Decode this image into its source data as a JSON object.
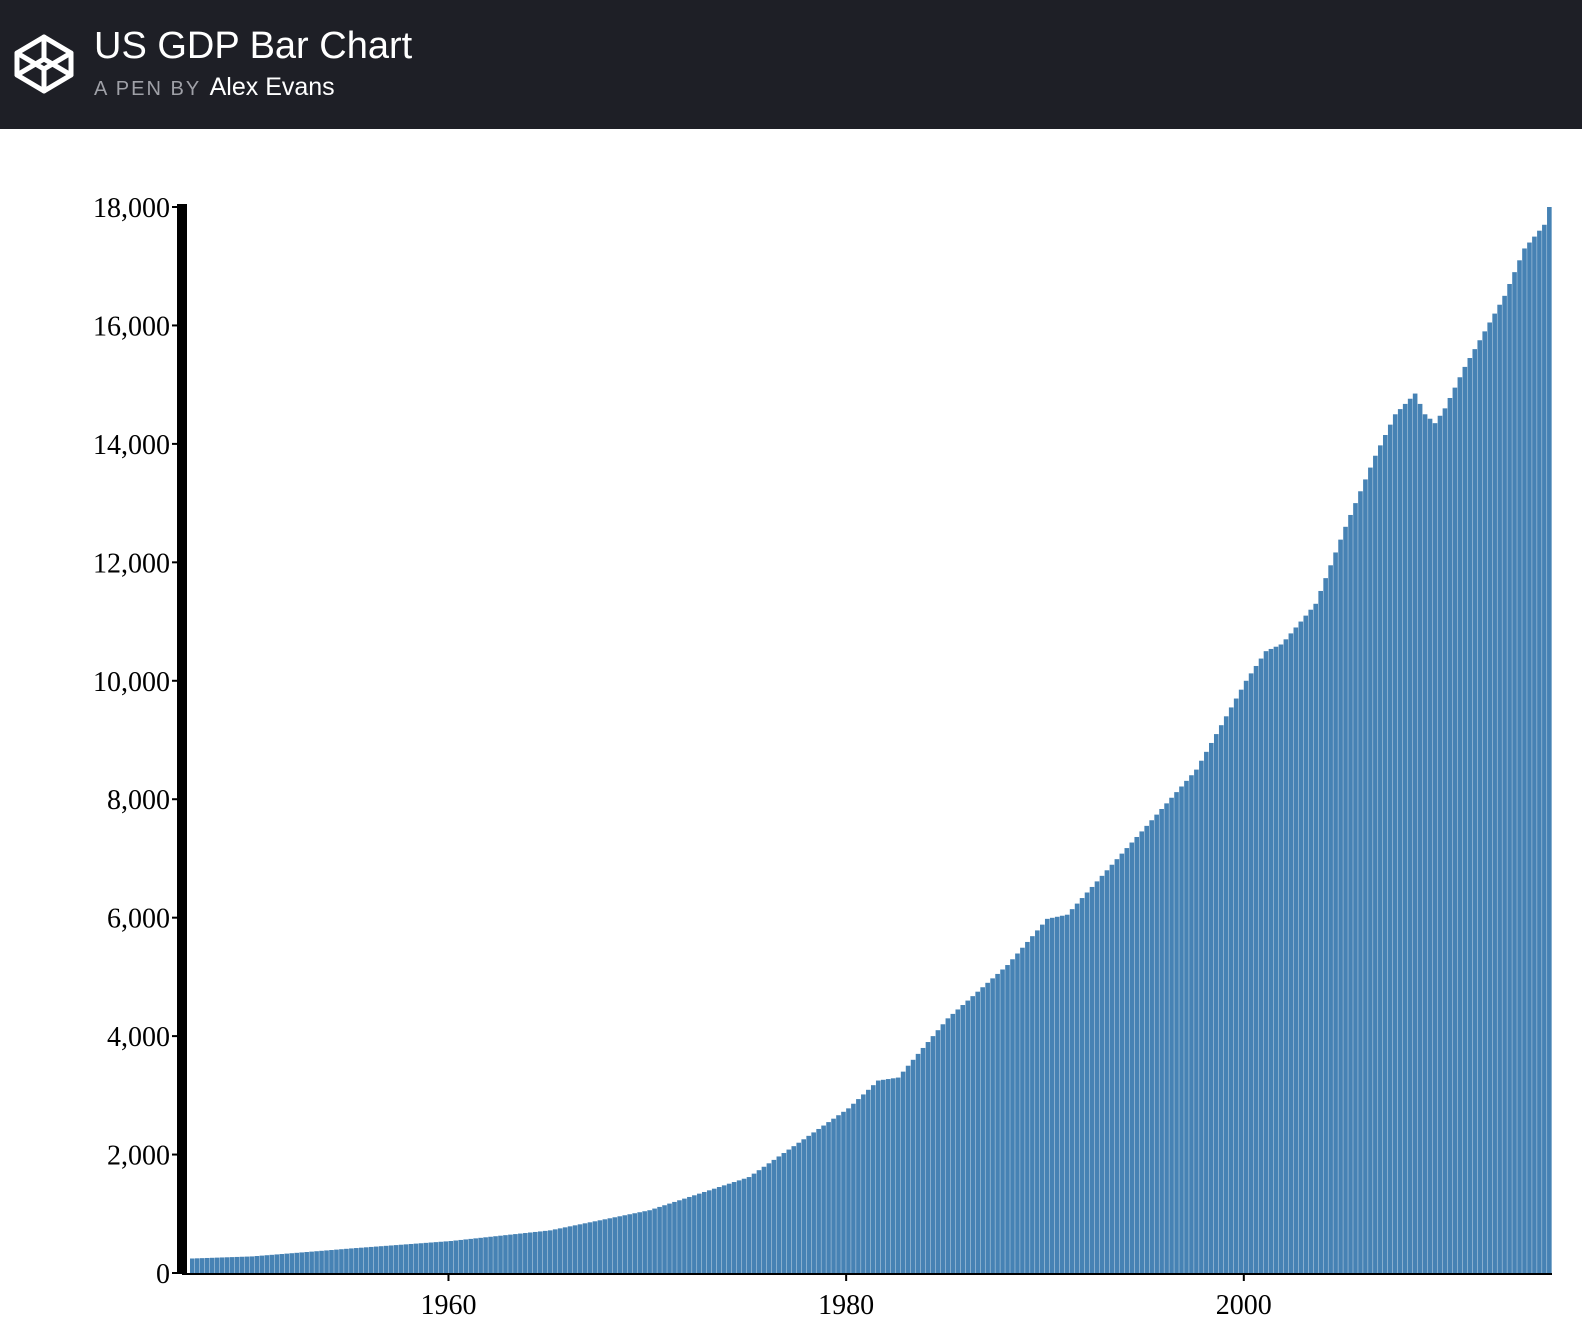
{
  "header": {
    "title": "US GDP Bar Chart",
    "by_prefix": "A PEN BY",
    "author": "Alex Evans",
    "logo_icon": "codepen-cube-icon"
  },
  "chart_data": {
    "type": "bar",
    "title": "",
    "xlabel": "",
    "ylabel": "",
    "x_range": [
      1947.0,
      2015.5
    ],
    "ylim": [
      0,
      18000
    ],
    "y_ticks": [
      0,
      2000,
      4000,
      6000,
      8000,
      10000,
      12000,
      14000,
      16000,
      18000
    ],
    "y_tick_labels": [
      "0",
      "2,000",
      "4,000",
      "6,000",
      "8,000",
      "10,000",
      "12,000",
      "14,000",
      "16,000",
      "18,000"
    ],
    "x_ticks": [
      1960,
      1980,
      2000
    ],
    "x_tick_labels": [
      "1960",
      "1980",
      "2000"
    ],
    "bar_interval": "quarterly",
    "grid": false,
    "legend": "none",
    "bar_color": "#4682b4",
    "axis_color": "#000000",
    "series": [
      {
        "anchors": [
          [
            1947.0,
            245
          ],
          [
            1950.0,
            280
          ],
          [
            1955.0,
            415
          ],
          [
            1960.0,
            540
          ],
          [
            1965.0,
            720
          ],
          [
            1970.0,
            1060
          ],
          [
            1975.0,
            1620
          ],
          [
            1980.0,
            2780
          ],
          [
            1981.5,
            3250
          ],
          [
            1982.5,
            3300
          ],
          [
            1985.0,
            4300
          ],
          [
            1988.0,
            5200
          ],
          [
            1990.0,
            5980
          ],
          [
            1991.0,
            6050
          ],
          [
            1995.0,
            7550
          ],
          [
            1997.5,
            8500
          ],
          [
            2000.0,
            10000
          ],
          [
            2001.0,
            10500
          ],
          [
            2001.8,
            10620
          ],
          [
            2003.5,
            11300
          ],
          [
            2005.0,
            12600
          ],
          [
            2006.5,
            13800
          ],
          [
            2007.5,
            14500
          ],
          [
            2008.5,
            14850
          ],
          [
            2009.0,
            14500
          ],
          [
            2009.5,
            14350
          ],
          [
            2010.0,
            14600
          ],
          [
            2011.0,
            15300
          ],
          [
            2012.0,
            15900
          ],
          [
            2013.0,
            16500
          ],
          [
            2014.0,
            17300
          ],
          [
            2015.0,
            17700
          ],
          [
            2015.25,
            18000
          ]
        ]
      }
    ]
  }
}
